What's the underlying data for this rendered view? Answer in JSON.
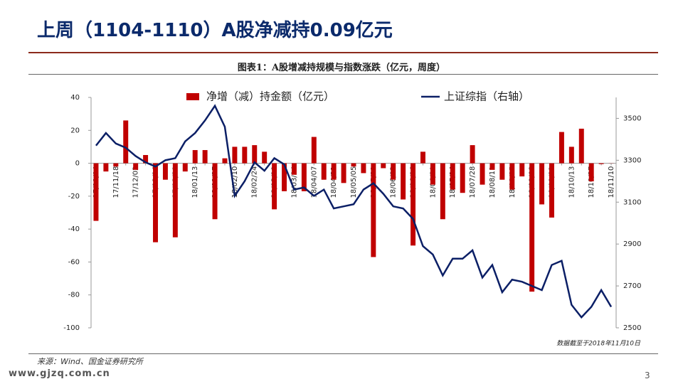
{
  "header": {
    "title": "上周（1104-1110）A股净减持0.09亿元"
  },
  "footer": {
    "source": "来源：Wind、国金证券研究所",
    "watermark": "www.gjzq.com.cn",
    "page": "3"
  },
  "chart_data": {
    "type": "combo",
    "title": "图表1：A股增减持规模与指数涨跌（亿元，周度）",
    "note": "数据截至于2018年11月10日",
    "categories": [
      "17/11/04",
      null,
      "17/11/18",
      null,
      "17/12/02",
      null,
      "17/12/16",
      null,
      "17/12/30",
      null,
      "18/01/13",
      null,
      "18/01/27",
      null,
      "18/02/10",
      null,
      "18/02/24",
      null,
      "18/03/10",
      null,
      "18/03/24",
      null,
      "18/04/07",
      null,
      "18/04/21",
      null,
      "18/05/05",
      null,
      "18/05/19",
      null,
      "18/06/02",
      null,
      "18/06/16",
      null,
      "18/06/30",
      null,
      "18/07/14",
      null,
      "18/07/28",
      null,
      "18/08/11",
      null,
      "18/08/25",
      null,
      "18/09/08",
      null,
      "18/09/22",
      null,
      "18/10/13",
      null,
      "18/10/27",
      null,
      "18/11/10"
    ],
    "series": [
      {
        "name": "净增（减）持金额（亿元）",
        "type": "bar",
        "color": "#c00000",
        "values": [
          -35,
          -5,
          -2,
          26,
          -4,
          5,
          -48,
          -10,
          -45,
          -5,
          8,
          8,
          -34,
          3,
          10,
          10,
          11,
          7,
          -28,
          -17,
          -7,
          -17,
          16,
          -10,
          -10,
          -12,
          -2,
          -6,
          -57,
          -3,
          -10,
          -22,
          -50,
          7,
          -13,
          -34,
          -16,
          -18,
          11,
          -13,
          -4,
          -10,
          -16,
          -8,
          -78,
          -25,
          -33,
          19,
          10,
          21,
          -11,
          -0.5,
          -0.09
        ]
      },
      {
        "name": "上证综指（右轴）",
        "type": "line",
        "axis": "y2",
        "color": "#0b1f66",
        "values": [
          3370,
          3430,
          3380,
          3360,
          3320,
          3290,
          3270,
          3300,
          3310,
          3390,
          3430,
          3490,
          3560,
          3460,
          3130,
          3200,
          3290,
          3250,
          3310,
          3280,
          3160,
          3170,
          3130,
          3160,
          3070,
          3080,
          3090,
          3160,
          3190,
          3140,
          3080,
          3070,
          3020,
          2890,
          2850,
          2750,
          2830,
          2830,
          2870,
          2740,
          2800,
          2670,
          2730,
          2720,
          2700,
          2680,
          2800,
          2820,
          2610,
          2550,
          2600,
          2680,
          2600
        ]
      }
    ],
    "ylim": [
      -100,
      40
    ],
    "yticks": [
      -100,
      -80,
      -60,
      -40,
      -20,
      0,
      20,
      40
    ],
    "y2lim": [
      2500,
      3600
    ],
    "y2ticks": [
      2500,
      2700,
      2900,
      3100,
      3300,
      3500
    ],
    "grid": false,
    "legend": "top"
  }
}
